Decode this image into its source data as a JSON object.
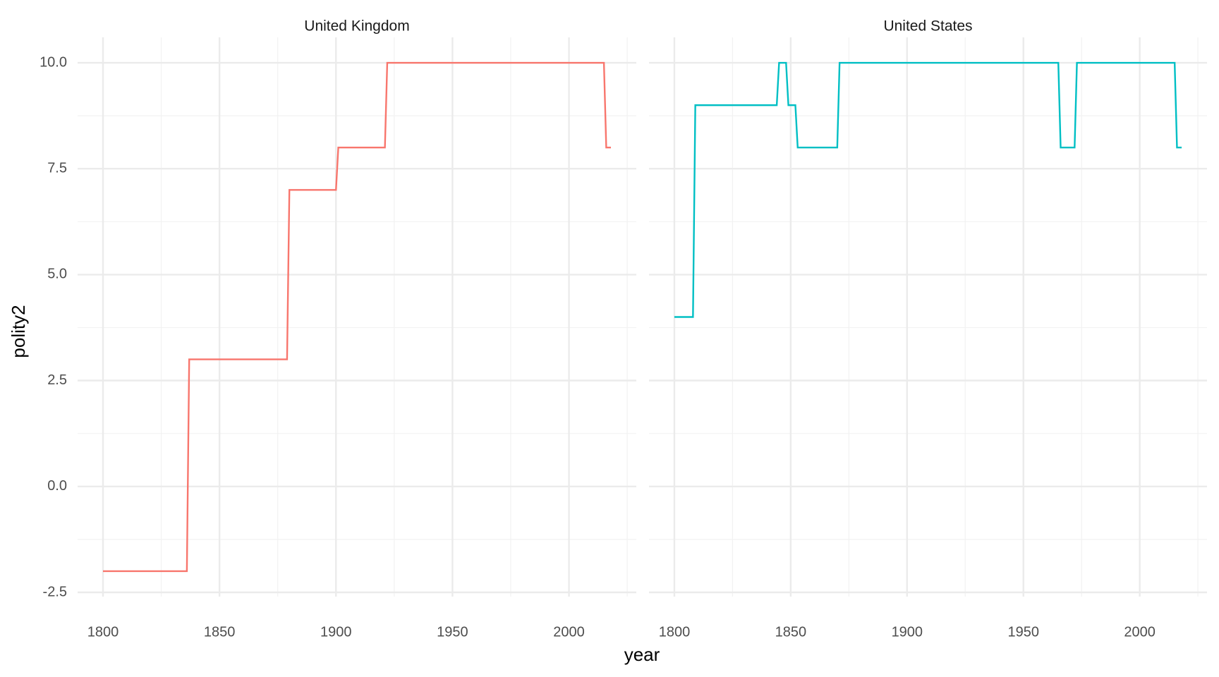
{
  "chart_data": {
    "type": "line",
    "x_label": "year",
    "y_label": "polity2",
    "xlim": [
      1789.1,
      2028.9
    ],
    "xticks": [
      1800,
      1850,
      1900,
      1950,
      2000
    ],
    "ylim": [
      -2.6,
      10.6
    ],
    "yticks": [
      -2.5,
      {
        "value": 0,
        "label": "0.0"
      },
      2.5,
      {
        "value": 5,
        "label": "5.0"
      },
      7.5,
      {
        "value": 10,
        "label": "10.0"
      }
    ],
    "grid": true,
    "facets": [
      {
        "title": "United Kingdom",
        "x": [
          1800,
          1836,
          1837,
          1879,
          1880,
          1900,
          1901,
          1921,
          1922,
          2015,
          2016,
          2018
        ],
        "series": [
          {
            "color": "#f8766d",
            "values": [
              -2,
              -2,
              3,
              3,
              7,
              7,
              8,
              8,
              10,
              10,
              8,
              8
            ]
          }
        ]
      },
      {
        "title": "United States",
        "x": [
          1800,
          1808,
          1809,
          1844,
          1845,
          1848,
          1849,
          1852,
          1853,
          1870,
          1871,
          1965,
          1966,
          1972,
          1973,
          2015,
          2016,
          2018
        ],
        "series": [
          {
            "color": "#00bfc4",
            "values": [
              4,
              4,
              9,
              9,
              10,
              10,
              9,
              9,
              8,
              8,
              10,
              10,
              8,
              8,
              10,
              10,
              8,
              8
            ]
          }
        ]
      }
    ]
  }
}
